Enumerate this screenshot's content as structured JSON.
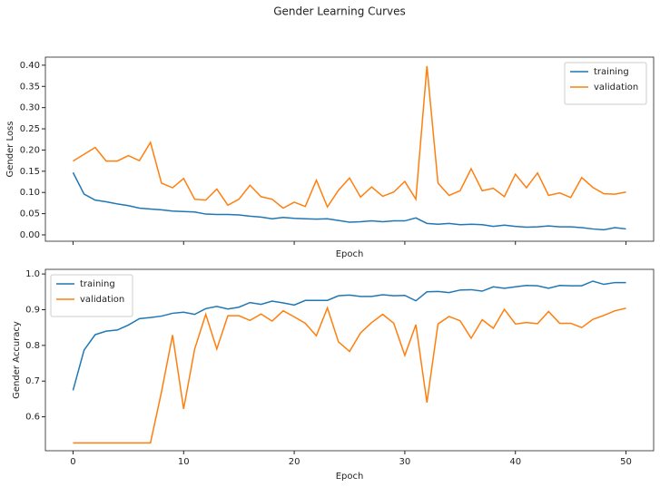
{
  "title": "Gender Learning Curves",
  "chart_data": [
    {
      "type": "line",
      "ylabel": "Gender Loss",
      "xlabel": "Epoch",
      "legend": "upper right",
      "show_xtick_labels": false,
      "x": [
        0,
        1,
        2,
        3,
        4,
        5,
        6,
        7,
        8,
        9,
        10,
        11,
        12,
        13,
        14,
        15,
        16,
        17,
        18,
        19,
        20,
        21,
        22,
        23,
        24,
        25,
        26,
        27,
        28,
        29,
        30,
        31,
        32,
        33,
        34,
        35,
        36,
        37,
        38,
        39,
        40,
        41,
        42,
        43,
        44,
        45,
        46,
        47,
        48,
        49,
        50
      ],
      "xlim": [
        -2.5,
        52.5
      ],
      "xticks": [
        0,
        10,
        20,
        30,
        40,
        50
      ],
      "ylim": [
        -0.015,
        0.419
      ],
      "yticks": [
        {
          "value": 0,
          "label": "0.00"
        },
        {
          "value": 0.05,
          "label": "0.05"
        },
        {
          "value": 0.1,
          "label": "0.10"
        },
        {
          "value": 0.15,
          "label": "0.15"
        },
        {
          "value": 0.2,
          "label": "0.20"
        },
        {
          "value": 0.25,
          "label": "0.25"
        },
        {
          "value": 0.3,
          "label": "0.30"
        },
        {
          "value": 0.35,
          "label": "0.35"
        },
        {
          "value": 0.4,
          "label": "0.40"
        }
      ],
      "series": [
        {
          "name": "training",
          "color": "#1f77b4",
          "values": [
            0.147,
            0.096,
            0.082,
            0.078,
            0.073,
            0.069,
            0.063,
            0.061,
            0.059,
            0.056,
            0.055,
            0.054,
            0.049,
            0.048,
            0.048,
            0.047,
            0.044,
            0.042,
            0.038,
            0.041,
            0.039,
            0.038,
            0.037,
            0.038,
            0.034,
            0.03,
            0.031,
            0.033,
            0.031,
            0.033,
            0.033,
            0.04,
            0.027,
            0.025,
            0.027,
            0.024,
            0.025,
            0.024,
            0.02,
            0.023,
            0.02,
            0.018,
            0.019,
            0.021,
            0.019,
            0.019,
            0.017,
            0.014,
            0.012,
            0.017,
            0.014
          ]
        },
        {
          "name": "validation",
          "color": "#ff7f0e",
          "values": [
            0.174,
            0.19,
            0.206,
            0.174,
            0.174,
            0.187,
            0.175,
            0.218,
            0.122,
            0.111,
            0.133,
            0.084,
            0.082,
            0.108,
            0.07,
            0.084,
            0.117,
            0.09,
            0.084,
            0.063,
            0.077,
            0.067,
            0.129,
            0.066,
            0.105,
            0.134,
            0.089,
            0.113,
            0.091,
            0.101,
            0.126,
            0.084,
            0.398,
            0.122,
            0.093,
            0.104,
            0.156,
            0.104,
            0.11,
            0.09,
            0.143,
            0.111,
            0.146,
            0.093,
            0.099,
            0.088,
            0.135,
            0.112,
            0.097,
            0.096,
            0.101
          ]
        }
      ]
    },
    {
      "type": "line",
      "ylabel": "Gender Accuracy",
      "xlabel": "Epoch",
      "legend": "upper left",
      "show_xtick_labels": true,
      "x": [
        0,
        1,
        2,
        3,
        4,
        5,
        6,
        7,
        8,
        9,
        10,
        11,
        12,
        13,
        14,
        15,
        16,
        17,
        18,
        19,
        20,
        21,
        22,
        23,
        24,
        25,
        26,
        27,
        28,
        29,
        30,
        31,
        32,
        33,
        34,
        35,
        36,
        37,
        38,
        39,
        40,
        41,
        42,
        43,
        44,
        45,
        46,
        47,
        48,
        49,
        50
      ],
      "xlim": [
        -2.5,
        52.5
      ],
      "xticks": [
        0,
        10,
        20,
        30,
        40,
        50
      ],
      "ylim": [
        0.505,
        1.013
      ],
      "yticks": [
        {
          "value": 0.6,
          "label": "0.6"
        },
        {
          "value": 0.7,
          "label": "0.7"
        },
        {
          "value": 0.8,
          "label": "0.8"
        },
        {
          "value": 0.9,
          "label": "0.9"
        },
        {
          "value": 1.0,
          "label": "1.0"
        }
      ],
      "series": [
        {
          "name": "training",
          "color": "#1f77b4",
          "values": [
            0.674,
            0.787,
            0.83,
            0.84,
            0.843,
            0.857,
            0.875,
            0.878,
            0.882,
            0.89,
            0.893,
            0.887,
            0.903,
            0.909,
            0.902,
            0.907,
            0.92,
            0.915,
            0.924,
            0.919,
            0.913,
            0.926,
            0.926,
            0.926,
            0.939,
            0.941,
            0.937,
            0.937,
            0.942,
            0.939,
            0.94,
            0.925,
            0.95,
            0.951,
            0.948,
            0.955,
            0.956,
            0.952,
            0.964,
            0.96,
            0.964,
            0.968,
            0.967,
            0.96,
            0.968,
            0.967,
            0.967,
            0.98,
            0.971,
            0.976,
            0.976
          ]
        },
        {
          "name": "validation",
          "color": "#ff7f0e",
          "values": [
            0.527,
            0.527,
            0.527,
            0.527,
            0.527,
            0.527,
            0.527,
            0.527,
            0.67,
            0.829,
            0.622,
            0.79,
            0.887,
            0.79,
            0.883,
            0.883,
            0.87,
            0.888,
            0.868,
            0.897,
            0.88,
            0.862,
            0.827,
            0.905,
            0.81,
            0.783,
            0.835,
            0.864,
            0.887,
            0.862,
            0.772,
            0.858,
            0.64,
            0.86,
            0.881,
            0.869,
            0.82,
            0.872,
            0.848,
            0.901,
            0.86,
            0.864,
            0.861,
            0.895,
            0.862,
            0.862,
            0.85,
            0.873,
            0.884,
            0.897,
            0.904
          ]
        }
      ]
    }
  ]
}
